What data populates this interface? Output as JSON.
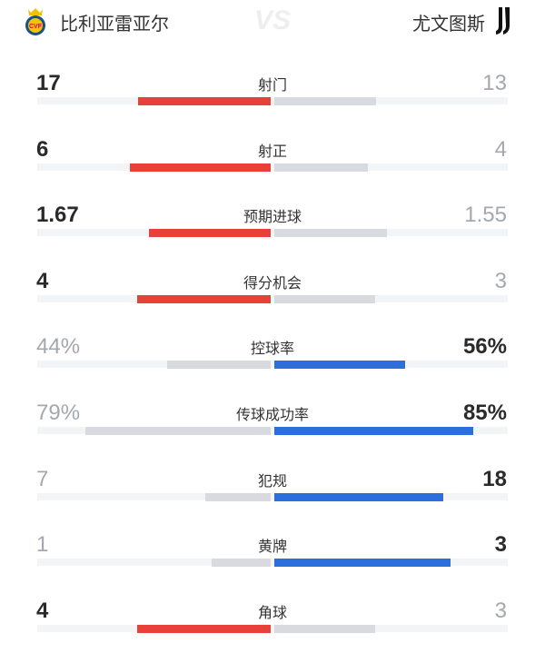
{
  "header": {
    "home_team": "比利亚雷亚尔",
    "away_team": "尤文图斯",
    "vs": "VS",
    "home_logo": "villarreal-crest",
    "away_logo": "juventus-logo"
  },
  "colors": {
    "home": "#e8413a",
    "away": "#2a6fdb",
    "neutral": "#d8dadf",
    "track": "#f3f4f6"
  },
  "stats": [
    {
      "label": "射门",
      "home": "17",
      "away": "13",
      "home_v": 17,
      "away_v": 13,
      "percent": false
    },
    {
      "label": "射正",
      "home": "6",
      "away": "4",
      "home_v": 6,
      "away_v": 4,
      "percent": false
    },
    {
      "label": "预期进球",
      "home": "1.67",
      "away": "1.55",
      "home_v": 1.67,
      "away_v": 1.55,
      "percent": false
    },
    {
      "label": "得分机会",
      "home": "4",
      "away": "3",
      "home_v": 4,
      "away_v": 3,
      "percent": false
    },
    {
      "label": "控球率",
      "home": "44%",
      "away": "56%",
      "home_v": 44,
      "away_v": 56,
      "percent": true
    },
    {
      "label": "传球成功率",
      "home": "79%",
      "away": "85%",
      "home_v": 79,
      "away_v": 85,
      "percent": true
    },
    {
      "label": "犯规",
      "home": "7",
      "away": "18",
      "home_v": 7,
      "away_v": 18,
      "percent": false
    },
    {
      "label": "黄牌",
      "home": "1",
      "away": "3",
      "home_v": 1,
      "away_v": 3,
      "percent": false
    },
    {
      "label": "角球",
      "home": "4",
      "away": "3",
      "home_v": 4,
      "away_v": 3,
      "percent": false
    }
  ]
}
